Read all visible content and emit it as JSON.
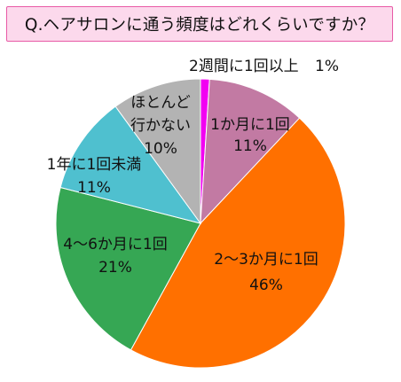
{
  "chart_data": {
    "type": "pie",
    "title": "Q.ヘアサロンに通う頻度はどれくらいですか？",
    "start_angle_deg": 0,
    "direction": "clockwise",
    "slices": [
      {
        "label": "2週間に1回以上",
        "value": 1,
        "value_label": "1%",
        "color": "#f200f2"
      },
      {
        "label": "1か月に1回",
        "value": 11,
        "value_label": "11%",
        "color": "#c27aa3"
      },
      {
        "label": "2～3か月に1回",
        "value": 46,
        "value_label": "46%",
        "color": "#ff7000"
      },
      {
        "label": "4～6か月に1回",
        "value": 21,
        "value_label": "21%",
        "color": "#36a754"
      },
      {
        "label": "1年に1回未満",
        "value": 11,
        "value_label": "11%",
        "color": "#4fc0cf"
      },
      {
        "label": "ほとんど行かない",
        "label_lines": [
          "ほとんど",
          "行かない"
        ],
        "value": 10,
        "value_label": "10%",
        "color": "#b3b3b3"
      }
    ]
  }
}
